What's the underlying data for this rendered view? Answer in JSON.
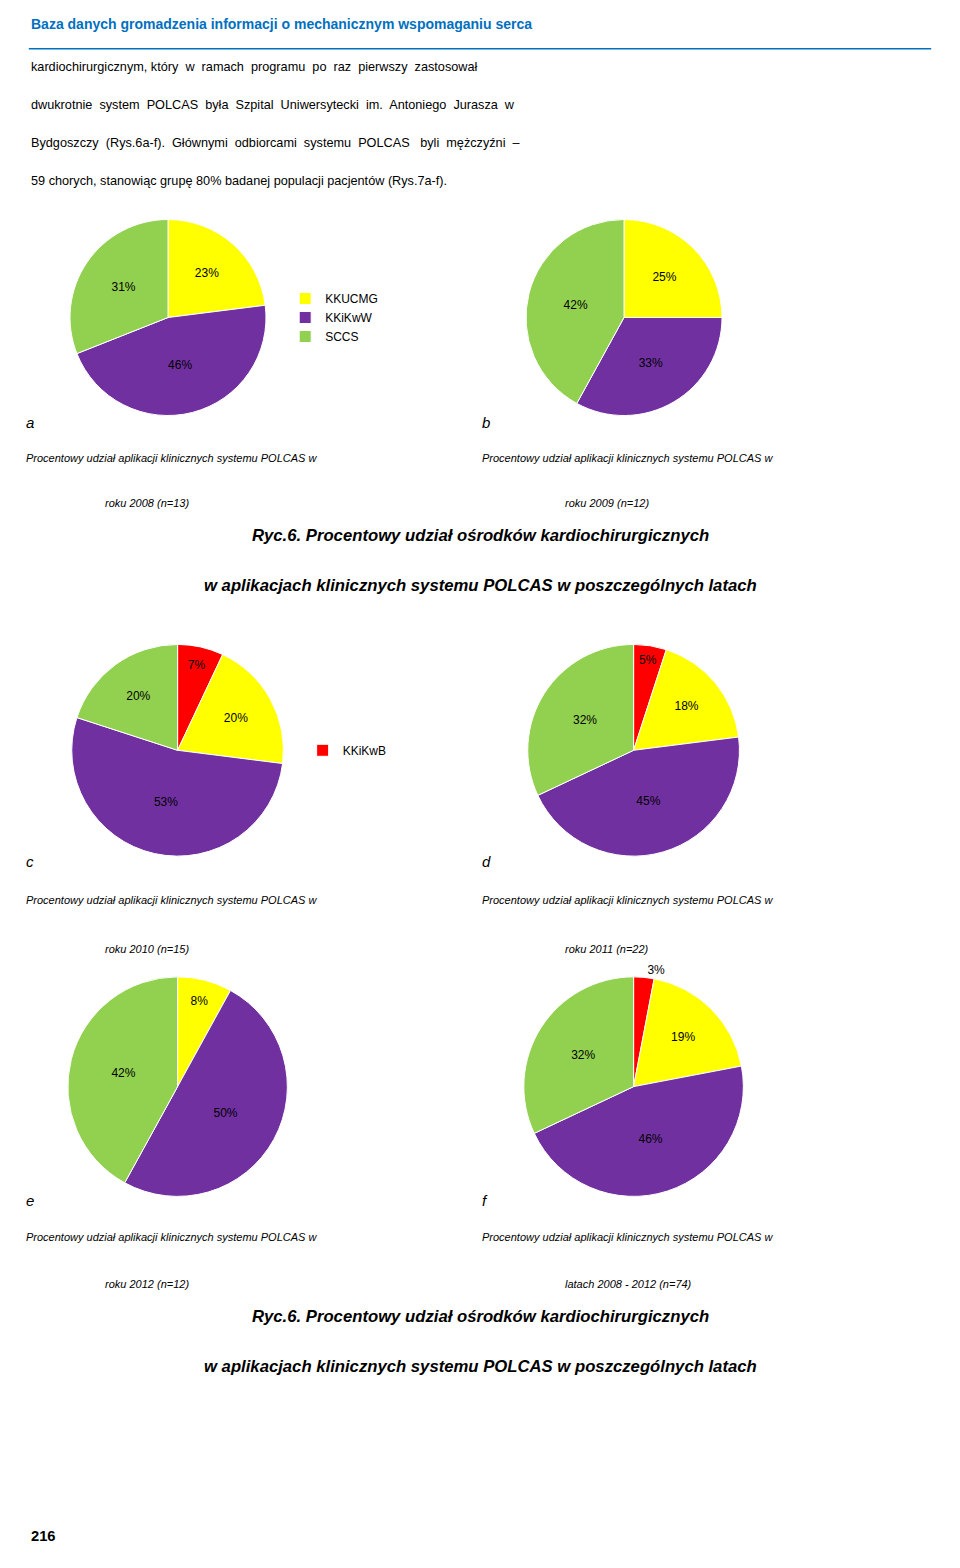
{
  "header": "Baza danych gromadzenia informacji o mechanicznym wspomaganiu serca",
  "header_color": "#0070C0",
  "body_text": [
    "kardiochirurgicznym, który  w  ramach  programu  po  raz  pierwszy  zastosował",
    "dwukrotnie  system  POLCAS  była  Szpital  Uniwersytecki  im.  Antoniego  Jurasza  w",
    "Bydgoszczy  (Rys.6a-f).  Głównymi  odbiorcami  systemu  POLCAS   byli  mężczyźni  –",
    "59 chorych, stanowiąc grupę 80% badanej populacji pacjentów (Rys.7a-f)."
  ],
  "captions": [
    [
      "Ryc.6. Procentowy udział ośrodków kardiochirurgicznych",
      "w aplikacjach klinicznych systemu POLCAS w poszczególnych latach"
    ],
    [
      "Ryc.6. Procentowy udział ośrodków kardiochirurgicznych",
      "w aplikacjach klinicznych systemu POLCAS w poszczególnych latach"
    ]
  ],
  "page_number": "216",
  "chart_data": [
    {
      "type": "pie",
      "title": "a",
      "subtitle": [
        "Procentowy udział aplikacji klinicznych systemu POLCAS w",
        "roku 2008 (n=13)"
      ],
      "categories": [
        "KKUCMG",
        "KKiKwW",
        "SCCS"
      ],
      "values": [
        23,
        46,
        31
      ],
      "value_labels": [
        "23%",
        "46%",
        "31%"
      ],
      "colors": [
        "#FFFF00",
        "#7030A0",
        "#92D050"
      ],
      "data_labels": true,
      "legend": "right"
    },
    {
      "type": "pie",
      "title": "b",
      "subtitle": [
        "Procentowy udział aplikacji klinicznych systemu POLCAS w",
        "roku 2009 (n=12)"
      ],
      "categories": [
        "KKUCMG",
        "KKiKwW",
        "SCCS"
      ],
      "values": [
        25,
        33,
        42
      ],
      "value_labels": [
        "25%",
        "33%",
        "42%"
      ],
      "colors": [
        "#FFFF00",
        "#7030A0",
        "#92D050"
      ],
      "data_labels": true,
      "legend": "right"
    },
    {
      "type": "pie",
      "title": "c",
      "subtitle": [
        "Procentowy udział aplikacji klinicznych systemu POLCAS w",
        "roku 2010 (n=15)"
      ],
      "categories": [
        "KKiKwB",
        "KKUCMG",
        "KKiKwW",
        "SCCS"
      ],
      "values": [
        7,
        20,
        53,
        20
      ],
      "value_labels": [
        "7%",
        "20%",
        "53%",
        "20%"
      ],
      "colors": [
        "#FF0000",
        "#FFFF00",
        "#7030A0",
        "#92D050"
      ],
      "data_labels": true,
      "legend": "right"
    },
    {
      "type": "pie",
      "title": "d",
      "subtitle": [
        "Procentowy udział aplikacji klinicznych systemu POLCAS w",
        "roku 2011 (n=22)"
      ],
      "categories": [
        "KKiKwB",
        "KKUCMG",
        "KKiKwW",
        "SCCS"
      ],
      "values": [
        5,
        18,
        45,
        32
      ],
      "value_labels": [
        "5%",
        "18%",
        "45%",
        "32%"
      ],
      "colors": [
        "#FF0000",
        "#FFFF00",
        "#7030A0",
        "#92D050"
      ],
      "data_labels": true,
      "legend": "right"
    },
    {
      "type": "pie",
      "title": "e",
      "subtitle": [
        "Procentowy udział aplikacji klinicznych systemu POLCAS w",
        "roku 2012 (n=12)"
      ],
      "categories": [
        "KKUCMG",
        "KKiKwW",
        "SCCS"
      ],
      "values": [
        8,
        50,
        42
      ],
      "value_labels": [
        "8%",
        "50%",
        "42%"
      ],
      "colors": [
        "#FFFF00",
        "#7030A0",
        "#92D050"
      ],
      "data_labels": true,
      "legend": "right"
    },
    {
      "type": "pie",
      "title": "f",
      "subtitle": [
        "Procentowy udział aplikacji klinicznych systemu POLCAS w",
        "latach 2008 - 2012 (n=74)"
      ],
      "categories": [
        "KKiKwB",
        "KKUCMG",
        "KKiKwW",
        "SCCS"
      ],
      "values": [
        3,
        19,
        46,
        32
      ],
      "value_labels": [
        "3%",
        "19%",
        "46%",
        "32%"
      ],
      "colors": [
        "#FF0000",
        "#FFFF00",
        "#7030A0",
        "#92D050"
      ],
      "data_labels": true,
      "legend": "right"
    }
  ]
}
